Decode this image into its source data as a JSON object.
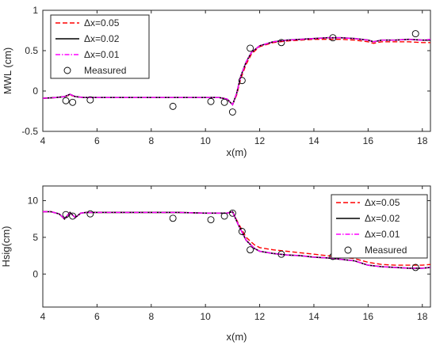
{
  "chart_data": [
    {
      "type": "line",
      "xlabel": "x(m)",
      "ylabel": "MWL (cm)",
      "xlim": [
        4,
        18.3
      ],
      "ylim": [
        -0.5,
        1
      ],
      "xticks": [
        4,
        6,
        8,
        10,
        12,
        14,
        16,
        18
      ],
      "xtick_labels": [
        "4",
        "6",
        "8",
        "10",
        "12",
        "14",
        "16",
        "18"
      ],
      "yticks": [
        -0.5,
        0,
        0.5,
        1
      ],
      "ytick_labels": [
        "-0.5",
        "0",
        "0.5",
        "1"
      ],
      "grid": false,
      "legend_position": "top-left",
      "series": [
        {
          "name": "Δx=0.05",
          "color": "#ff0000",
          "style": "dashed",
          "x": [
            4,
            4.5,
            4.8,
            5.0,
            5.2,
            5.5,
            6,
            7,
            8,
            9,
            10,
            10.5,
            10.8,
            11.0,
            11.15,
            11.3,
            11.5,
            11.7,
            12,
            12.5,
            13,
            13.5,
            14,
            14.5,
            15,
            15.5,
            16,
            16.2,
            16.5,
            17,
            17.5,
            18,
            18.3
          ],
          "y": [
            -0.09,
            -0.08,
            -0.07,
            -0.05,
            -0.07,
            -0.08,
            -0.08,
            -0.08,
            -0.08,
            -0.08,
            -0.08,
            -0.08,
            -0.1,
            -0.17,
            -0.05,
            0.15,
            0.33,
            0.46,
            0.55,
            0.6,
            0.62,
            0.63,
            0.64,
            0.64,
            0.64,
            0.63,
            0.61,
            0.59,
            0.61,
            0.61,
            0.61,
            0.6,
            0.6
          ]
        },
        {
          "name": "Δx=0.02",
          "color": "#000000",
          "style": "solid",
          "x": [
            4,
            4.5,
            4.8,
            5.0,
            5.2,
            5.5,
            6,
            7,
            8,
            9,
            10,
            10.5,
            10.8,
            11.0,
            11.15,
            11.3,
            11.5,
            11.7,
            12,
            12.5,
            13,
            13.5,
            14,
            14.5,
            15,
            15.5,
            16,
            16.2,
            16.5,
            17,
            17.5,
            18,
            18.3
          ],
          "y": [
            -0.09,
            -0.08,
            -0.07,
            -0.04,
            -0.07,
            -0.08,
            -0.08,
            -0.08,
            -0.08,
            -0.08,
            -0.08,
            -0.08,
            -0.1,
            -0.17,
            -0.03,
            0.18,
            0.36,
            0.48,
            0.56,
            0.61,
            0.63,
            0.64,
            0.65,
            0.66,
            0.66,
            0.65,
            0.63,
            0.61,
            0.63,
            0.63,
            0.64,
            0.63,
            0.63
          ]
        },
        {
          "name": "Δx=0.01",
          "color": "#ff00ff",
          "style": "dash-dot",
          "x": [
            4,
            4.5,
            4.8,
            5.0,
            5.2,
            5.5,
            6,
            7,
            8,
            9,
            10,
            10.5,
            10.8,
            11.0,
            11.15,
            11.3,
            11.5,
            11.7,
            12,
            12.5,
            13,
            13.5,
            14,
            14.5,
            15,
            15.5,
            16,
            16.2,
            16.5,
            17,
            17.5,
            18,
            18.3
          ],
          "y": [
            -0.09,
            -0.08,
            -0.07,
            -0.04,
            -0.07,
            -0.08,
            -0.08,
            -0.08,
            -0.08,
            -0.08,
            -0.08,
            -0.08,
            -0.1,
            -0.17,
            -0.03,
            0.18,
            0.36,
            0.48,
            0.56,
            0.61,
            0.63,
            0.64,
            0.65,
            0.66,
            0.66,
            0.65,
            0.63,
            0.61,
            0.63,
            0.63,
            0.64,
            0.63,
            0.64
          ]
        },
        {
          "name": "Measured",
          "color": "#000000",
          "style": "circle",
          "x": [
            4.85,
            5.1,
            5.75,
            8.8,
            10.2,
            10.7,
            11.0,
            11.35,
            11.65,
            12.8,
            14.7,
            17.75
          ],
          "y": [
            -0.12,
            -0.14,
            -0.11,
            -0.19,
            -0.13,
            -0.14,
            -0.26,
            0.13,
            0.53,
            0.6,
            0.66,
            0.71
          ]
        }
      ]
    },
    {
      "type": "line",
      "xlabel": "x(m)",
      "ylabel": "Hsig(cm)",
      "xlim": [
        4,
        18.3
      ],
      "ylim": [
        -4.5,
        12
      ],
      "xticks": [
        4,
        6,
        8,
        10,
        12,
        14,
        16,
        18
      ],
      "xtick_labels": [
        "4",
        "6",
        "8",
        "10",
        "12",
        "14",
        "16",
        "18"
      ],
      "yticks": [
        0,
        5,
        10
      ],
      "ytick_labels": [
        "0",
        "5",
        "10"
      ],
      "grid": false,
      "legend_position": "top-right",
      "series": [
        {
          "name": "Δx=0.05",
          "color": "#ff0000",
          "style": "dashed",
          "x": [
            4,
            4.3,
            4.6,
            4.8,
            5.0,
            5.2,
            5.4,
            5.6,
            6,
            7,
            8,
            9,
            10,
            10.5,
            10.8,
            11.0,
            11.2,
            11.5,
            11.8,
            12,
            12.5,
            13,
            13.5,
            14,
            14.5,
            15,
            15.5,
            16,
            16.5,
            17,
            17.5,
            18,
            18.3
          ],
          "y": [
            8.5,
            8.5,
            8.2,
            7.5,
            8.4,
            7.7,
            8.3,
            8.4,
            8.4,
            8.4,
            8.4,
            8.4,
            8.3,
            8.3,
            8.3,
            8.5,
            7.0,
            5.0,
            4.0,
            3.6,
            3.3,
            3.1,
            2.9,
            2.7,
            2.5,
            2.3,
            2.1,
            1.6,
            1.3,
            1.2,
            1.2,
            1.2,
            1.3
          ]
        },
        {
          "name": "Δx=0.02",
          "color": "#000000",
          "style": "solid",
          "x": [
            4,
            4.3,
            4.6,
            4.8,
            5.0,
            5.2,
            5.4,
            5.6,
            6,
            7,
            8,
            9,
            10,
            10.5,
            10.8,
            11.0,
            11.2,
            11.5,
            11.8,
            12,
            12.5,
            13,
            13.5,
            14,
            14.5,
            15,
            15.5,
            16,
            16.5,
            17,
            17.5,
            18,
            18.3
          ],
          "y": [
            8.5,
            8.5,
            8.2,
            7.5,
            8.4,
            7.7,
            8.3,
            8.4,
            8.4,
            8.4,
            8.4,
            8.4,
            8.3,
            8.3,
            8.3,
            8.5,
            6.8,
            4.6,
            3.5,
            3.1,
            2.8,
            2.6,
            2.5,
            2.3,
            2.2,
            2.0,
            1.8,
            1.2,
            1.0,
            0.9,
            0.8,
            0.8,
            0.9
          ]
        },
        {
          "name": "Δx=0.01",
          "color": "#ff00ff",
          "style": "dash-dot",
          "x": [
            4,
            4.3,
            4.6,
            4.8,
            5.0,
            5.2,
            5.4,
            5.6,
            6,
            7,
            8,
            9,
            10,
            10.5,
            10.8,
            11.0,
            11.2,
            11.5,
            11.8,
            12,
            12.5,
            13,
            13.5,
            14,
            14.5,
            15,
            15.5,
            16,
            16.5,
            17,
            17.5,
            18,
            18.3
          ],
          "y": [
            8.5,
            8.5,
            8.2,
            7.5,
            8.4,
            7.7,
            8.3,
            8.4,
            8.4,
            8.4,
            8.4,
            8.4,
            8.3,
            8.3,
            8.3,
            8.5,
            6.8,
            4.6,
            3.5,
            3.1,
            2.8,
            2.6,
            2.5,
            2.3,
            2.2,
            2.0,
            1.8,
            1.2,
            1.0,
            0.9,
            0.8,
            0.8,
            0.9
          ]
        },
        {
          "name": "Measured",
          "color": "#000000",
          "style": "circle",
          "x": [
            4.85,
            5.1,
            5.75,
            8.8,
            10.2,
            10.7,
            11.0,
            11.35,
            11.65,
            12.8,
            14.7,
            17.75
          ],
          "y": [
            8.1,
            7.9,
            8.2,
            7.6,
            7.4,
            7.9,
            8.3,
            5.8,
            3.3,
            2.7,
            2.4,
            0.9
          ]
        }
      ]
    }
  ]
}
